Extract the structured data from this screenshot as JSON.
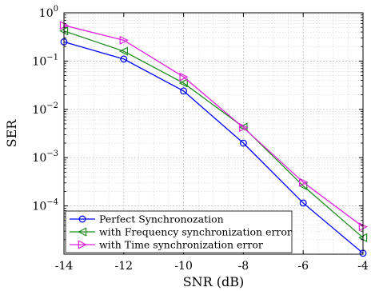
{
  "chart_data": {
    "type": "line",
    "title": "",
    "xlabel": "SNR (dB)",
    "ylabel": "SER",
    "xscale": "linear",
    "yscale": "log",
    "xlim": [
      -14,
      -4
    ],
    "ylim": [
      1e-05,
      1
    ],
    "xticks": [
      -14,
      -12,
      -10,
      -8,
      -6,
      -4
    ],
    "xtick_labels": [
      "-14",
      "-12",
      "-10",
      "-8",
      "-6",
      "-4"
    ],
    "ytick_labels": [
      {
        "base": "10",
        "exp": "0"
      },
      {
        "base": "10",
        "exp": "−1"
      },
      {
        "base": "10",
        "exp": "−2"
      },
      {
        "base": "10",
        "exp": "−3"
      },
      {
        "base": "10",
        "exp": "−4"
      }
    ],
    "grid": true,
    "legend_position": "bottom-left",
    "x": [
      -14,
      -12,
      -10,
      -8,
      -6,
      -4
    ],
    "series": [
      {
        "name": "Perfect Synchronozation",
        "color": "#0000ff",
        "marker": "circle",
        "values": [
          0.25,
          0.11,
          0.024,
          0.002,
          0.000115,
          1.05e-05
        ]
      },
      {
        "name": "with Frequency synchronization error",
        "color": "#1e8c1e",
        "marker": "triangle-left",
        "values": [
          0.42,
          0.16,
          0.035,
          0.0043,
          0.00026,
          2.2e-05
        ]
      },
      {
        "name": "with Time synchronization error",
        "color": "#dd22dd",
        "marker": "triangle-right",
        "values": [
          0.55,
          0.27,
          0.047,
          0.0042,
          0.00031,
          3.7e-05
        ]
      }
    ]
  }
}
